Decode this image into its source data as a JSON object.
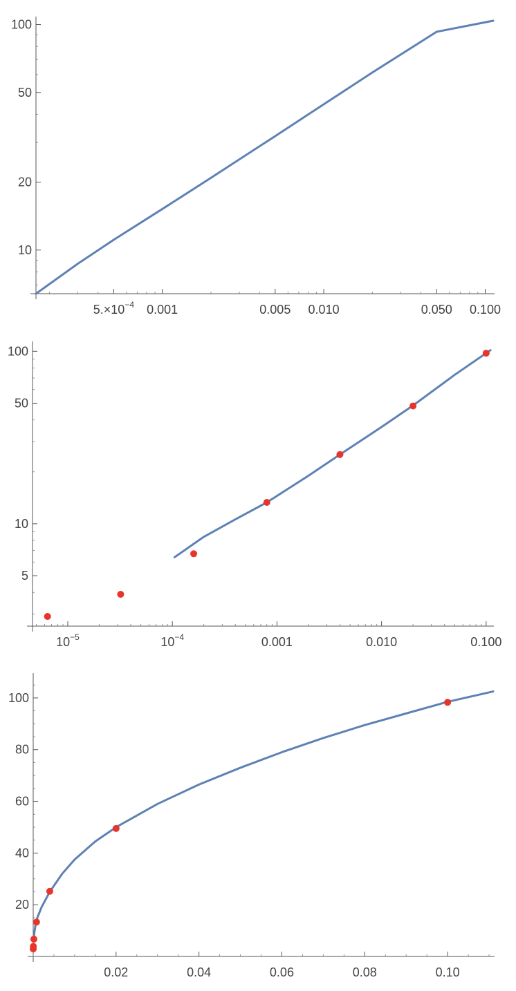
{
  "chart_data": [
    {
      "type": "line",
      "x_scale": "log",
      "y_scale": "log",
      "xlim": [
        0.000165,
        0.112
      ],
      "ylim": [
        6.4,
        104
      ],
      "x_tick_labels": [
        {
          "value": 0.0005,
          "mantissa": "5.×10",
          "exponent": "−4"
        },
        {
          "value": 0.001,
          "label": "0.001"
        },
        {
          "value": 0.005,
          "label": "0.005"
        },
        {
          "value": 0.01,
          "label": "0.010"
        },
        {
          "value": 0.05,
          "label": "0.050"
        },
        {
          "value": 0.1,
          "label": "0.100"
        }
      ],
      "y_tick_labels": [
        {
          "value": 10,
          "label": "10"
        },
        {
          "value": 20,
          "label": "20"
        },
        {
          "value": 50,
          "label": "50"
        },
        {
          "value": 100,
          "label": "100"
        }
      ],
      "series": [
        {
          "x": [
            0.000165,
            0.0003,
            0.0005,
            0.001,
            0.002,
            0.005,
            0.01,
            0.02,
            0.05,
            0.112
          ],
          "y": [
            6.4,
            8.7,
            11.1,
            15.2,
            20.9,
            32.0,
            44.3,
            61.3,
            92.9,
            104
          ],
          "color": "#5e81b5"
        }
      ],
      "title": "",
      "xlabel": "",
      "ylabel": ""
    },
    {
      "type": "scatter",
      "x_scale": "log",
      "y_scale": "log",
      "xlim": [
        4.6e-06,
        0.115
      ],
      "ylim": [
        2.55,
        108
      ],
      "x_tick_labels": [
        {
          "value": 1e-05,
          "mantissa": "10",
          "exponent": "−5"
        },
        {
          "value": 0.0001,
          "mantissa": "10",
          "exponent": "−4"
        },
        {
          "value": 0.001,
          "label": "0.001"
        },
        {
          "value": 0.01,
          "label": "0.010"
        },
        {
          "value": 0.1,
          "label": "0.100"
        }
      ],
      "y_tick_labels": [
        {
          "value": 5,
          "label": "5"
        },
        {
          "value": 10,
          "label": "10"
        },
        {
          "value": 50,
          "label": "50"
        },
        {
          "value": 100,
          "label": "100"
        }
      ],
      "points": {
        "x": [
          6.4e-06,
          3.2e-05,
          0.00016,
          0.0008,
          0.004,
          0.02,
          0.1
        ],
        "y": [
          2.9,
          3.9,
          6.7,
          13.3,
          25.2,
          48.2,
          97.5
        ],
        "color": "#e8352b"
      },
      "series": [
        {
          "x": [
            0.000105,
            0.0002,
            0.0004,
            0.0008,
            0.002,
            0.004,
            0.01,
            0.02,
            0.05,
            0.11
          ],
          "y": [
            6.4,
            8.4,
            10.6,
            13.3,
            19.0,
            25.2,
            36.4,
            48.5,
            73.0,
            101.5
          ],
          "color": "#5e81b5"
        }
      ],
      "title": "",
      "xlabel": "",
      "ylabel": ""
    },
    {
      "type": "scatter",
      "x_scale": "linear",
      "y_scale": "linear",
      "xlim": [
        0,
        0.111
      ],
      "ylim": [
        0,
        108
      ],
      "x_tick_labels": [
        {
          "value": 0.02,
          "label": "0.02"
        },
        {
          "value": 0.04,
          "label": "0.04"
        },
        {
          "value": 0.06,
          "label": "0.06"
        },
        {
          "value": 0.08,
          "label": "0.08"
        },
        {
          "value": 0.1,
          "label": "0.10"
        }
      ],
      "y_tick_labels": [
        {
          "value": 20,
          "label": "20"
        },
        {
          "value": 40,
          "label": "40"
        },
        {
          "value": 60,
          "label": "60"
        },
        {
          "value": 80,
          "label": "80"
        },
        {
          "value": 100,
          "label": "100"
        }
      ],
      "points": {
        "x": [
          6.4e-06,
          3.2e-05,
          0.00016,
          0.0008,
          0.004,
          0.02,
          0.1
        ],
        "y": [
          2.9,
          3.9,
          6.7,
          13.3,
          25.2,
          49.5,
          98.3
        ],
        "color": "#e8352b"
      },
      "series": [
        {
          "x": [
            0.0001,
            0.0003,
            0.0006,
            0.001,
            0.002,
            0.004,
            0.007,
            0.01,
            0.015,
            0.02,
            0.03,
            0.04,
            0.05,
            0.06,
            0.07,
            0.08,
            0.09,
            0.1,
            0.111
          ],
          "y": [
            6.0,
            9.5,
            12.5,
            15.0,
            19.0,
            25.0,
            32.0,
            37.5,
            44.5,
            50.0,
            59.0,
            66.5,
            73.0,
            79.0,
            84.5,
            89.5,
            94.0,
            98.5,
            102.5
          ],
          "color": "#5e81b5"
        }
      ],
      "title": "",
      "xlabel": "",
      "ylabel": ""
    }
  ]
}
